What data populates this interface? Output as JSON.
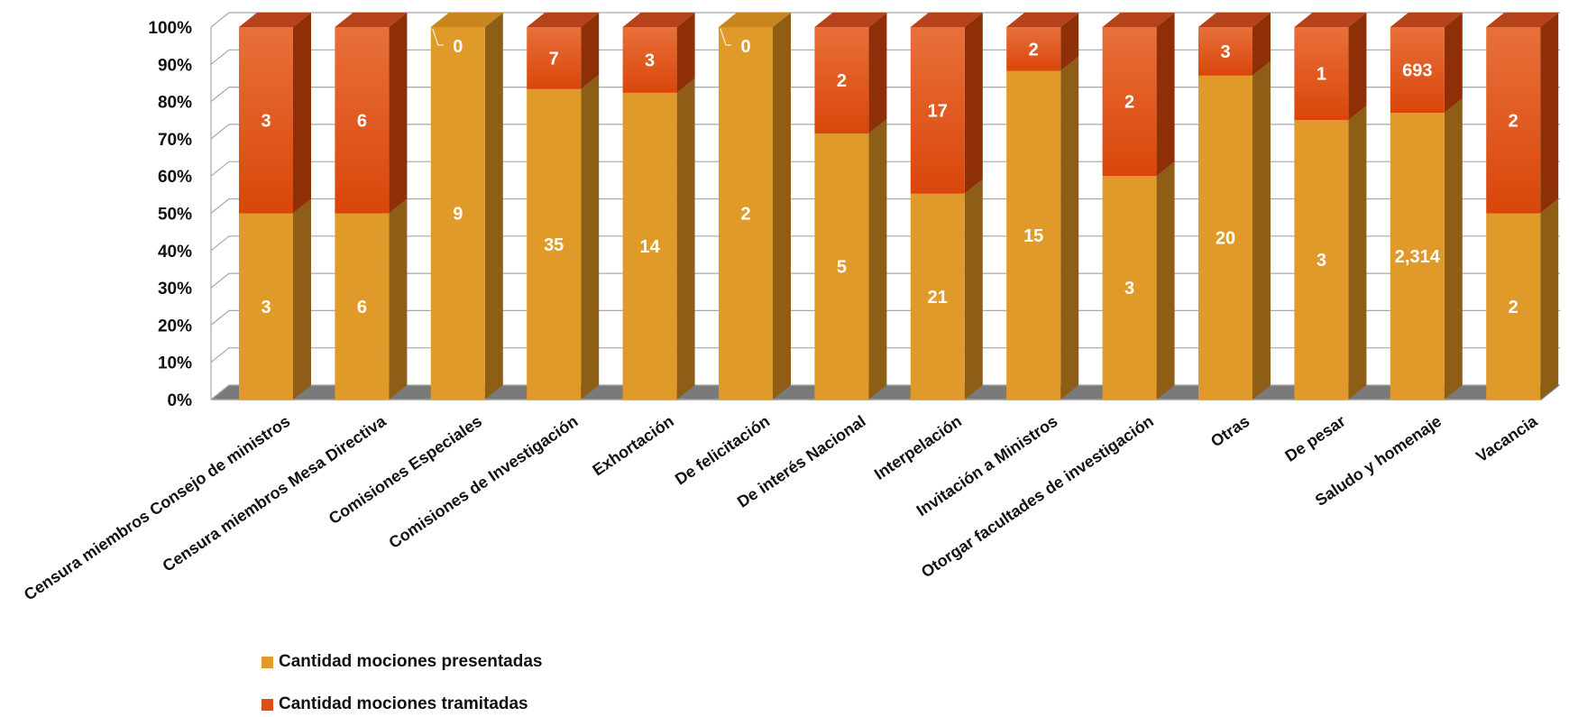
{
  "chart_data": {
    "type": "bar",
    "stacked": "percent",
    "three_d": true,
    "categories": [
      "Censura miembros Consejo de ministros",
      "Censura miembros  Mesa Directiva",
      "Comisiones Especiales",
      "Comisiones de Investigación",
      "Exhortación",
      "De felicitación",
      "De interés Nacional",
      "Interpelación",
      "Invitación a Ministros",
      "Otorgar facultades de investigación",
      "Otras",
      "De pesar",
      "Saludo y homenaje",
      "Vacancia"
    ],
    "series": [
      {
        "name": "Cantidad  mociones presentadas",
        "values": [
          3,
          6,
          9,
          35,
          14,
          2,
          5,
          21,
          15,
          3,
          20,
          3,
          2314,
          2
        ],
        "labels": [
          "3",
          "6",
          "9",
          "35",
          "14",
          "2",
          "5",
          "21",
          "15",
          "3",
          "20",
          "3",
          "2,314",
          "2"
        ],
        "color": "#E39A2A"
      },
      {
        "name": "Cantidad  mociones tramitadas",
        "values": [
          3,
          6,
          0,
          7,
          3,
          0,
          2,
          17,
          2,
          2,
          3,
          1,
          693,
          2
        ],
        "labels": [
          "3",
          "6",
          "0",
          "7",
          "3",
          "0",
          "2",
          "17",
          "2",
          "2",
          "3",
          "1",
          "693",
          "2"
        ],
        "color": "#DE4F12"
      }
    ],
    "yticks": [
      "0%",
      "10%",
      "20%",
      "30%",
      "40%",
      "50%",
      "60%",
      "70%",
      "80%",
      "90%",
      "100%"
    ],
    "ylim": [
      0,
      100
    ],
    "grid": true,
    "legend_position": "bottom-left"
  }
}
